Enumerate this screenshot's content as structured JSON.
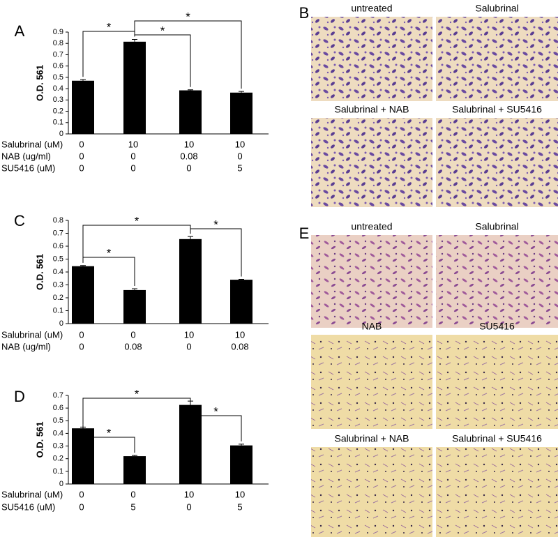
{
  "chart_data": [
    {
      "type": "bar",
      "panel": "A",
      "ylabel": "O.D. 561",
      "values": [
        0.47,
        0.815,
        0.385,
        0.365
      ],
      "errors": [
        0.01,
        0.02,
        0.005,
        0.01
      ],
      "color": "#000000",
      "ylim": [
        0,
        0.9
      ],
      "yticks": [
        0,
        0.1,
        0.2,
        0.3,
        0.4,
        0.5,
        0.6,
        0.7,
        0.8,
        0.9
      ],
      "conditions": [
        {
          "label": "Salubrinal (uM)",
          "values": [
            "0",
            "10",
            "10",
            "10"
          ]
        },
        {
          "label": "NAB (ug/ml)",
          "values": [
            "0",
            "0",
            "0.08",
            "0"
          ]
        },
        {
          "label": "SU5416 (uM)",
          "values": [
            "0",
            "0",
            "0",
            "5"
          ]
        }
      ],
      "significance": [
        {
          "from": 0,
          "to": 1,
          "label": "*"
        },
        {
          "from": 1,
          "to": 3,
          "label": "*"
        },
        {
          "from": 1,
          "to": 2,
          "label": "*"
        }
      ]
    },
    {
      "type": "bar",
      "panel": "C",
      "ylabel": "O.D. 561",
      "values": [
        0.445,
        0.26,
        0.655,
        0.34
      ],
      "errors": [
        0.005,
        0.01,
        0.02,
        0.003
      ],
      "color": "#000000",
      "ylim": [
        0,
        0.8
      ],
      "yticks": [
        0,
        0.1,
        0.2,
        0.3,
        0.4,
        0.5,
        0.6,
        0.7,
        0.8
      ],
      "conditions": [
        {
          "label": "Salubrinal (uM)",
          "values": [
            "0",
            "0",
            "10",
            "10"
          ]
        },
        {
          "label": "NAB (ug/ml)",
          "values": [
            "0",
            "0.08",
            "0",
            "0.08"
          ]
        }
      ],
      "significance": [
        {
          "from": 0,
          "to": 1,
          "label": "*"
        },
        {
          "from": 0,
          "to": 2,
          "label": "*"
        },
        {
          "from": 2,
          "to": 3,
          "label": "*"
        }
      ]
    },
    {
      "type": "bar",
      "panel": "D",
      "ylabel": "O.D. 561",
      "values": [
        0.44,
        0.22,
        0.625,
        0.305
      ],
      "errors": [
        0.01,
        0.005,
        0.03,
        0.01
      ],
      "color": "#000000",
      "ylim": [
        0,
        0.7
      ],
      "yticks": [
        0,
        0.1,
        0.2,
        0.3,
        0.4,
        0.5,
        0.6,
        0.7
      ],
      "conditions": [
        {
          "label": "Salubrinal (uM)",
          "values": [
            "0",
            "0",
            "10",
            "10"
          ]
        },
        {
          "label": "SU5416 (uM)",
          "values": [
            "0",
            "5",
            "0",
            "5"
          ]
        }
      ],
      "significance": [
        {
          "from": 0,
          "to": 1,
          "label": "*"
        },
        {
          "from": 0,
          "to": 2,
          "label": "*"
        },
        {
          "from": 2,
          "to": 3,
          "label": "*"
        }
      ]
    }
  ],
  "micrographs": [
    {
      "panel": "B",
      "captions": [
        "untreated",
        "Salubrinal",
        "Salubrinal + NAB",
        "Salubrinal + SU5416"
      ]
    },
    {
      "panel": "E",
      "captions": [
        "untreated",
        "Salubrinal",
        "NAB",
        "SU5416",
        "Salubrinal + NAB",
        "Salubrinal + SU5416"
      ]
    }
  ]
}
